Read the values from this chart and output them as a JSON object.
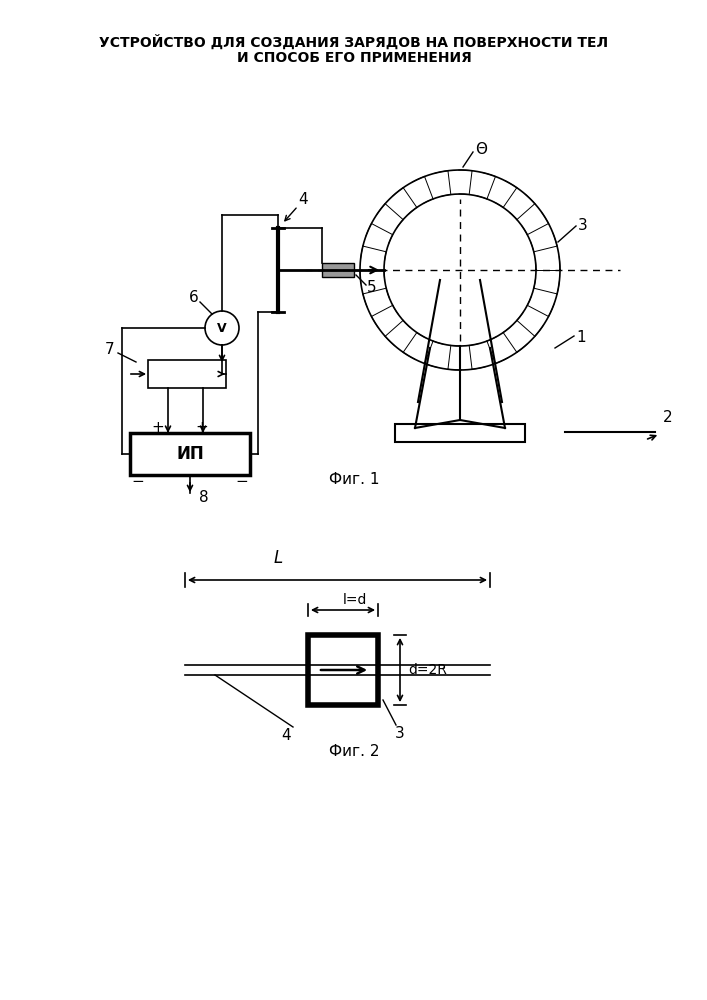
{
  "title_line1": "УСТРОЙСТВО ДЛЯ СОЗДАНИЯ ЗАРЯДОВ НА ПОВЕРХНОСТИ ТЕЛ",
  "title_line2": "И СПОСОБ ЕГО ПРИМЕНЕНИЯ",
  "fig1_caption": "Фиг. 1",
  "fig2_caption": "Фиг. 2",
  "bg_color": "#ffffff"
}
